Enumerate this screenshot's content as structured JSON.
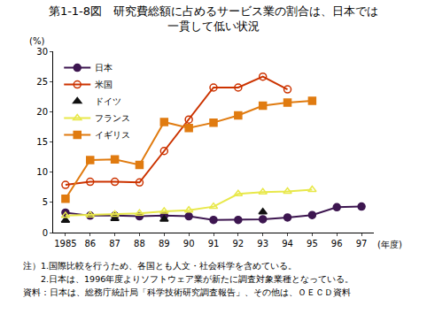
{
  "chart_data": {
    "type": "line",
    "title": "第1-1-8図　研究費総額に占めるサービス業の割合は、日本では\n一貫して低い状況",
    "x_label": "(年度)",
    "y_label": "(%)",
    "categories": [
      "1985",
      "86",
      "87",
      "88",
      "89",
      "90",
      "91",
      "92",
      "93",
      "94",
      "95",
      "96",
      "97"
    ],
    "series": [
      {
        "name": "日本",
        "color": "#3d1650",
        "marker": "circle",
        "line_style": "solid",
        "values": [
          3.3,
          2.8,
          2.8,
          2.7,
          2.8,
          2.7,
          2.1,
          2.1,
          2.2,
          2.5,
          2.9,
          4.2,
          4.3
        ]
      },
      {
        "name": "米国",
        "color": "#cc3300",
        "marker": "circle-open",
        "line_style": "solid",
        "values": [
          7.9,
          8.4,
          8.4,
          8.3,
          13.5,
          18.7,
          24.0,
          24.0,
          25.8,
          23.7,
          null,
          null,
          null
        ]
      },
      {
        "name": "ドイツ",
        "color": "#111111",
        "marker": "triangle-up",
        "line_style": "none",
        "values": [
          2.0,
          null,
          2.3,
          null,
          2.2,
          null,
          null,
          null,
          3.4,
          null,
          null,
          null,
          null
        ]
      },
      {
        "name": "フランス",
        "color": "#e8e84a",
        "marker": "triangle-up-open",
        "line_style": "solid",
        "values": [
          2.8,
          2.9,
          3.0,
          3.2,
          3.5,
          3.7,
          4.3,
          6.4,
          6.7,
          6.8,
          7.1,
          null,
          null
        ]
      },
      {
        "name": "イギリス",
        "color": "#e07b10",
        "marker": "square",
        "line_style": "solid",
        "values": [
          5.6,
          12.0,
          12.1,
          11.2,
          18.3,
          17.3,
          18.2,
          19.4,
          21.0,
          21.5,
          21.8,
          null,
          null
        ]
      }
    ],
    "ylim": [
      0,
      30
    ],
    "yticks": [
      0,
      5,
      10,
      15,
      20,
      25,
      30
    ],
    "grid": false,
    "legend": "upper left",
    "annotations": [
      "注）1.国際比較を行うため、各国とも人文・社会科学を含めている。",
      "　　2.日本は、1996年度よりソフトウェア業が新たに調査対象業種となっている。",
      "資料：日本は、総務庁統計局「科学技術研究調査報告」、その他は、ＯＥＣＤ資料"
    ]
  }
}
